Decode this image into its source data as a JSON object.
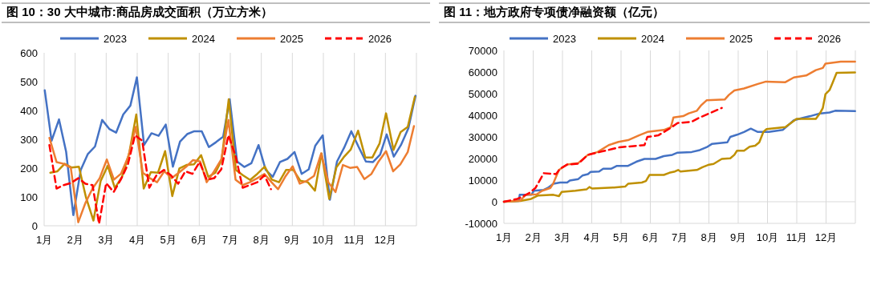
{
  "chart_data": [
    {
      "type": "line",
      "title": "图 10：30 大中城市:商品房成交面积（万立方米）",
      "grid": "x",
      "legend": "top",
      "xlim": [
        1,
        13
      ],
      "xticks": [
        {
          "value": 1,
          "label": "1月"
        },
        {
          "value": 2,
          "label": "2月"
        },
        {
          "value": 3,
          "label": "3月"
        },
        {
          "value": 4,
          "label": "4月"
        },
        {
          "value": 5,
          "label": "5月"
        },
        {
          "value": 6,
          "label": "6月"
        },
        {
          "value": 7,
          "label": "7月"
        },
        {
          "value": 8,
          "label": "8月"
        },
        {
          "value": 9,
          "label": "9月"
        },
        {
          "value": 10,
          "label": "10月"
        },
        {
          "value": 11,
          "label": "11月"
        },
        {
          "value": 12,
          "label": "12月"
        }
      ],
      "ylim": [
        0,
        600
      ],
      "yticks": [
        0,
        100,
        200,
        300,
        400,
        500,
        600
      ],
      "series": [
        {
          "name": "2023",
          "color": "#4472c4",
          "line_style": "solid",
          "x": [
            1.02,
            1.24,
            1.48,
            1.71,
            1.94,
            2.18,
            2.41,
            2.64,
            2.87,
            3.1,
            3.32,
            3.55,
            3.78,
            3.99,
            4.22,
            4.46,
            4.69,
            4.92,
            5.15,
            5.38,
            5.61,
            5.84,
            6.08,
            6.31,
            6.54,
            6.77,
            6.98,
            7.22,
            7.45,
            7.68,
            7.91,
            8.14,
            8.37,
            8.6,
            8.84,
            9.07,
            9.3,
            9.53,
            9.74,
            9.98,
            10.21,
            10.44,
            10.67,
            10.9,
            11.13,
            11.37,
            11.6,
            11.83,
            12.04,
            12.27,
            12.5,
            12.74,
            12.97
          ],
          "values": [
            470,
            295,
            369,
            256,
            37,
            194,
            249,
            275,
            367,
            336,
            323,
            386,
            417,
            515,
            280,
            321,
            312,
            351,
            205,
            292,
            318,
            328,
            328,
            273,
            290,
            309,
            439,
            223,
            204,
            217,
            280,
            194,
            170,
            221,
            232,
            256,
            180,
            196,
            278,
            314,
            90,
            223,
            271,
            328,
            275,
            223,
            221,
            247,
            317,
            240,
            280,
            338,
            451
          ]
        },
        {
          "name": "2024",
          "color": "#bf9000",
          "line_style": "solid",
          "x": [
            1.2,
            1.43,
            1.66,
            1.89,
            2.12,
            2.35,
            2.59,
            2.82,
            3.05,
            3.28,
            3.51,
            3.74,
            3.97,
            4.21,
            4.44,
            4.67,
            4.9,
            5.13,
            5.36,
            5.59,
            5.83,
            6.06,
            6.29,
            6.52,
            6.72,
            6.95,
            7.18,
            7.41,
            7.64,
            7.87,
            8.11,
            8.34,
            8.57,
            8.8,
            9.03,
            9.26,
            9.5,
            9.73,
            9.94,
            10.19,
            10.42,
            10.65,
            10.88,
            11.12,
            11.35,
            11.58,
            11.81,
            12.02,
            12.26,
            12.49,
            12.72,
            12.95
          ],
          "values": [
            184,
            189,
            215,
            202,
            205,
            98,
            18,
            155,
            208,
            131,
            170,
            251,
            386,
            129,
            186,
            184,
            259,
            103,
            199,
            211,
            213,
            245,
            170,
            184,
            228,
            439,
            194,
            175,
            159,
            180,
            205,
            160,
            151,
            194,
            194,
            156,
            151,
            122,
            251,
            93,
            203,
            237,
            264,
            330,
            237,
            237,
            285,
            390,
            263,
            325,
            343,
            448
          ]
        },
        {
          "name": "2025",
          "color": "#ed7d31",
          "line_style": "solid",
          "x": [
            1.17,
            1.4,
            1.63,
            1.86,
            2.1,
            2.33,
            2.56,
            2.79,
            3.02,
            3.25,
            3.48,
            3.72,
            3.95,
            4.18,
            4.41,
            4.64,
            4.87,
            5.11,
            5.34,
            5.57,
            5.8,
            6.03,
            6.24,
            6.48,
            6.71,
            6.94,
            7.17,
            7.4,
            7.63,
            7.87,
            8.1,
            8.33,
            8.54,
            8.77,
            9.01,
            9.24,
            9.47,
            9.7,
            9.93,
            10.16,
            10.39,
            10.63,
            10.86,
            11.09,
            11.32,
            11.55,
            11.78,
            12.02,
            12.25,
            12.48,
            12.72,
            12.92
          ],
          "values": [
            305,
            221,
            215,
            201,
            12,
            79,
            129,
            165,
            230,
            160,
            181,
            242,
            343,
            184,
            165,
            151,
            189,
            165,
            184,
            204,
            228,
            223,
            151,
            189,
            230,
            367,
            160,
            141,
            151,
            165,
            180,
            151,
            127,
            170,
            206,
            146,
            156,
            173,
            251,
            151,
            117,
            211,
            201,
            204,
            162,
            180,
            223,
            259,
            189,
            213,
            256,
            346
          ]
        },
        {
          "name": "2026",
          "color": "#ff0000",
          "line_style": "dashed",
          "x": [
            1.17,
            1.4,
            1.63,
            1.86,
            2.1,
            2.33,
            2.56,
            2.77,
            3.0,
            3.24,
            3.47,
            3.7,
            3.93,
            4.16,
            4.39,
            4.62,
            4.86,
            5.09,
            5.32,
            5.55,
            5.78,
            6.01,
            6.24,
            6.48,
            6.71,
            6.94,
            7.17,
            7.4,
            7.63,
            7.87,
            8.1,
            8.31
          ],
          "values": [
            280,
            129,
            141,
            148,
            165,
            146,
            141,
            7,
            148,
            117,
            160,
            213,
            314,
            295,
            132,
            175,
            194,
            175,
            146,
            189,
            180,
            221,
            160,
            165,
            196,
            314,
            242,
            132,
            141,
            151,
            175,
            127
          ]
        }
      ]
    },
    {
      "type": "line",
      "title": "图 11：地方政府专项债净融资额（亿元）",
      "grid": "x",
      "legend": "top",
      "xlim": [
        1,
        13
      ],
      "xticks": [
        {
          "value": 1,
          "label": "1月"
        },
        {
          "value": 2,
          "label": "2月"
        },
        {
          "value": 3,
          "label": "3月"
        },
        {
          "value": 4,
          "label": "4月"
        },
        {
          "value": 5,
          "label": "5月"
        },
        {
          "value": 6,
          "label": "6月"
        },
        {
          "value": 7,
          "label": "7月"
        },
        {
          "value": 8,
          "label": "8月"
        },
        {
          "value": 9,
          "label": "9月"
        },
        {
          "value": 10,
          "label": "10月"
        },
        {
          "value": 11,
          "label": "11月"
        },
        {
          "value": 12,
          "label": "12月"
        }
      ],
      "ylim": [
        -10000,
        70000
      ],
      "yticks": [
        -10000,
        0,
        10000,
        20000,
        30000,
        40000,
        50000,
        60000,
        70000
      ],
      "ref_lines": [
        {
          "axis": "y",
          "value": 0,
          "color": "#d9d9d9"
        }
      ],
      "series": [
        {
          "name": "2023",
          "color": "#4472c4",
          "line_style": "solid",
          "x": [
            1,
            1.51,
            1.54,
            1.93,
            2.03,
            2.36,
            2.5,
            2.69,
            2.92,
            3.16,
            3.25,
            3.54,
            3.68,
            3.87,
            3.96,
            4.25,
            4.39,
            4.67,
            4.86,
            5.24,
            5.52,
            5.8,
            6.18,
            6.46,
            6.75,
            6.93,
            7.41,
            7.69,
            7.92,
            8.11,
            8.63,
            8.73,
            8.96,
            9.2,
            9.43,
            9.67,
            10.05,
            10.52,
            10.9,
            11.18,
            11.46,
            11.75,
            12.12,
            12.31,
            12.99
          ],
          "values": [
            0,
            400,
            3200,
            3200,
            5100,
            5500,
            6400,
            8300,
            8900,
            8900,
            9800,
            10500,
            12100,
            12800,
            13800,
            14000,
            15300,
            15300,
            16600,
            16600,
            18500,
            19800,
            19800,
            21100,
            21700,
            22700,
            23000,
            23900,
            25200,
            26800,
            27500,
            30000,
            31000,
            32300,
            33800,
            32300,
            32300,
            33200,
            37700,
            38700,
            39600,
            40700,
            41300,
            42100,
            41900
          ]
        },
        {
          "name": "2024",
          "color": "#bf9000",
          "line_style": "solid",
          "x": [
            1,
            1.56,
            1.93,
            2.17,
            2.69,
            2.88,
            2.97,
            3.44,
            3.82,
            3.92,
            4.01,
            4.76,
            5.14,
            5.24,
            5.71,
            5.85,
            5.97,
            6.46,
            6.65,
            6.84,
            6.95,
            7.03,
            7.59,
            7.78,
            7.97,
            8.16,
            8.44,
            8.73,
            8.87,
            8.96,
            9.2,
            9.39,
            9.58,
            9.72,
            9.86,
            9.97,
            10.61,
            10.9,
            10.99,
            11.65,
            11.79,
            11.89,
            11.98,
            12.12,
            12.22,
            12.36,
            12.99
          ],
          "values": [
            0,
            400,
            1300,
            2900,
            3200,
            2600,
            4500,
            5100,
            5700,
            6800,
            6100,
            6600,
            7000,
            8300,
            8900,
            9600,
            12400,
            12400,
            13400,
            14000,
            14700,
            14000,
            14700,
            16000,
            17000,
            17500,
            19800,
            20100,
            21700,
            23600,
            23600,
            25500,
            25900,
            27500,
            32300,
            33600,
            34500,
            37400,
            38300,
            38300,
            40900,
            43400,
            49800,
            51700,
            54900,
            59600,
            59800
          ]
        },
        {
          "name": "2025",
          "color": "#ed7d31",
          "line_style": "solid",
          "x": [
            1,
            1.56,
            1.75,
            2.12,
            2.31,
            2.59,
            2.69,
            2.88,
            3.16,
            3.54,
            3.87,
            4.2,
            4.58,
            4.91,
            5.24,
            5.61,
            5.9,
            6.46,
            6.7,
            6.79,
            7.12,
            7.31,
            7.59,
            7.74,
            7.92,
            8.54,
            8.68,
            8.87,
            9.2,
            9.67,
            9.95,
            10.61,
            10.9,
            11.32,
            11.65,
            11.89,
            11.98,
            12.5,
            12.99
          ],
          "values": [
            0,
            600,
            3200,
            3400,
            5100,
            6400,
            8600,
            14700,
            17200,
            17900,
            21700,
            23000,
            26200,
            27700,
            28500,
            30700,
            32300,
            33200,
            34500,
            39000,
            39600,
            40900,
            42100,
            44700,
            46900,
            47300,
            49400,
            51500,
            52400,
            54500,
            55600,
            55300,
            57500,
            58400,
            60900,
            61900,
            63900,
            64800,
            64800
          ]
        },
        {
          "name": "2026",
          "color": "#ff0000",
          "line_style": "dashed",
          "x": [
            1,
            1.46,
            1.84,
            2.08,
            2.36,
            2.78,
            2.92,
            3.16,
            3.54,
            3.87,
            4.39,
            4.95,
            5.8,
            5.9,
            6.27,
            6.65,
            6.93,
            7.41,
            7.69,
            8.02,
            8.44
          ],
          "values": [
            0,
            1300,
            3800,
            6400,
            13200,
            12800,
            15300,
            17200,
            17600,
            21700,
            23400,
            25200,
            26200,
            30000,
            30700,
            33800,
            36400,
            37000,
            39000,
            40900,
            43400
          ]
        }
      ]
    }
  ]
}
